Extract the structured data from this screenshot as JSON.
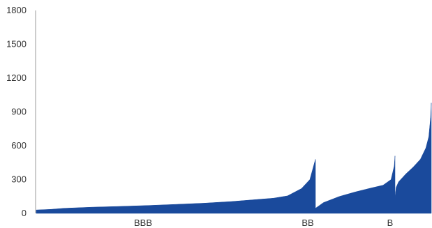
{
  "chart_data": {
    "type": "area",
    "title": "",
    "xlabel": "",
    "ylabel": "",
    "ylim": [
      0,
      1800
    ],
    "yticks": [
      0,
      300,
      600,
      900,
      1200,
      1500,
      1800
    ],
    "grid": false,
    "legend": "none",
    "color": "#1a4a9c",
    "categories": [
      "BBB",
      "BB",
      "B"
    ],
    "series": [
      {
        "category": "BBB",
        "x": [
          0,
          5,
          10,
          20,
          30,
          40,
          50,
          60,
          70,
          75,
          80,
          85,
          90,
          95,
          98,
          100
        ],
        "values": [
          30,
          35,
          45,
          55,
          62,
          70,
          80,
          90,
          105,
          115,
          125,
          135,
          155,
          220,
          300,
          480
        ]
      },
      {
        "category": "BB",
        "x": [
          0,
          5,
          10,
          30,
          50,
          70,
          85,
          95,
          99,
          100
        ],
        "values": [
          45,
          70,
          95,
          150,
          190,
          225,
          250,
          300,
          420,
          510
        ]
      },
      {
        "category": "B",
        "x": [
          0,
          3,
          10,
          30,
          50,
          70,
          85,
          93,
          98,
          100
        ],
        "values": [
          140,
          230,
          280,
          350,
          410,
          480,
          580,
          680,
          850,
          980
        ]
      }
    ]
  }
}
